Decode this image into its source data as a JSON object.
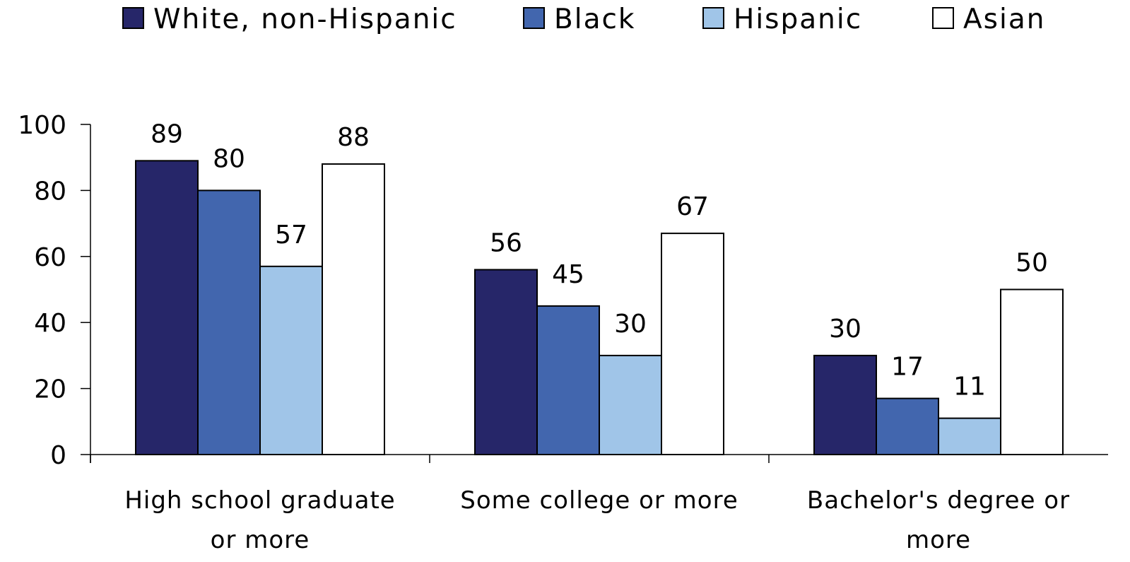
{
  "chart_data": {
    "type": "bar",
    "categories": [
      [
        "High school graduate",
        "or more"
      ],
      [
        "Some college or more"
      ],
      [
        "Bachelor's degree or",
        "more"
      ]
    ],
    "series": [
      {
        "name": "White, non-Hispanic",
        "color": "#262669",
        "values": [
          89,
          56,
          30
        ],
        "labels": [
          "89",
          "56",
          "30"
        ]
      },
      {
        "name": "Black",
        "color": "#4266ae",
        "values": [
          80,
          45,
          17
        ],
        "labels": [
          "80",
          "45",
          "17"
        ]
      },
      {
        "name": "Hispanic",
        "color": "#a0c5e8",
        "values": [
          57,
          30,
          11
        ],
        "labels": [
          "57",
          "30",
          "11"
        ]
      },
      {
        "name": "Asian",
        "color": "#ffffff",
        "values": [
          88,
          67,
          50
        ],
        "labels": [
          "88",
          "67",
          "50"
        ]
      }
    ],
    "ylim": [
      0,
      100
    ],
    "yticks": [
      "0",
      "20",
      "40",
      "60",
      "80",
      "100"
    ],
    "legend_position": "top",
    "grid": false
  }
}
